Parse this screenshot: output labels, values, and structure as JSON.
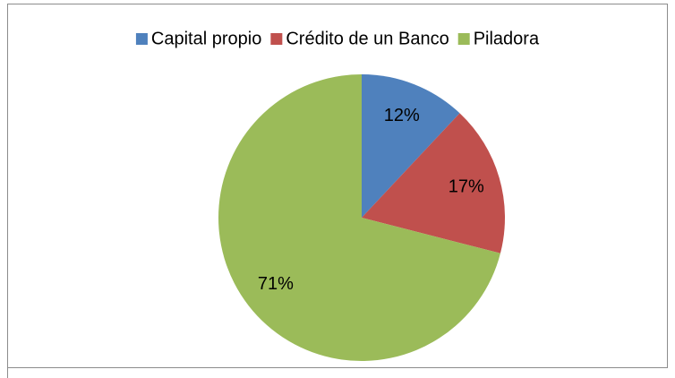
{
  "chart_data": {
    "type": "pie",
    "categories": [
      "Capital propio",
      "Crédito de un Banco",
      "Piladora"
    ],
    "values": [
      12,
      17,
      71
    ],
    "value_labels": [
      "12%",
      "17%",
      "71%"
    ],
    "colors": [
      "#4f81bd",
      "#c0504d",
      "#9bbb59"
    ],
    "legend": "top"
  }
}
